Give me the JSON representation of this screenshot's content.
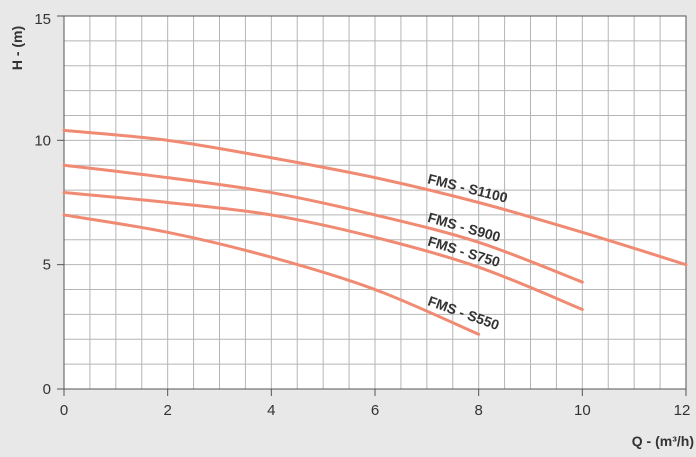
{
  "chart_data": {
    "type": "line",
    "xlabel": "Q - (m³/h)",
    "ylabel": "H - (m)",
    "xlim": [
      0,
      12
    ],
    "ylim": [
      0,
      15
    ],
    "x_ticks": [
      "0",
      "2",
      "4",
      "6",
      "8",
      "10",
      "12"
    ],
    "y_ticks": [
      "0",
      "5",
      "10",
      "15"
    ],
    "grid": true,
    "minor_grid_x_step": 0.5,
    "minor_grid_y_step": 1,
    "line_color": "#f08a72",
    "grid_color": "#b5b5b5",
    "background_color": "#ffffff",
    "series": [
      {
        "name": "FMS - S1100",
        "x": [
          0,
          2,
          4,
          6,
          8,
          10,
          12
        ],
        "y": [
          10.4,
          10.0,
          9.3,
          8.5,
          7.5,
          6.3,
          5.0
        ]
      },
      {
        "name": "FMS - S900",
        "x": [
          0,
          2,
          4,
          6,
          8,
          10
        ],
        "y": [
          9.0,
          8.5,
          7.9,
          7.0,
          5.9,
          4.3
        ]
      },
      {
        "name": "FMS - S750",
        "x": [
          0,
          2,
          4,
          6,
          8,
          10
        ],
        "y": [
          7.9,
          7.5,
          7.0,
          6.1,
          4.9,
          3.2
        ]
      },
      {
        "name": "FMS - S550",
        "x": [
          0,
          2,
          4,
          6,
          8
        ],
        "y": [
          7.0,
          6.3,
          5.3,
          4.0,
          2.2
        ]
      }
    ]
  }
}
